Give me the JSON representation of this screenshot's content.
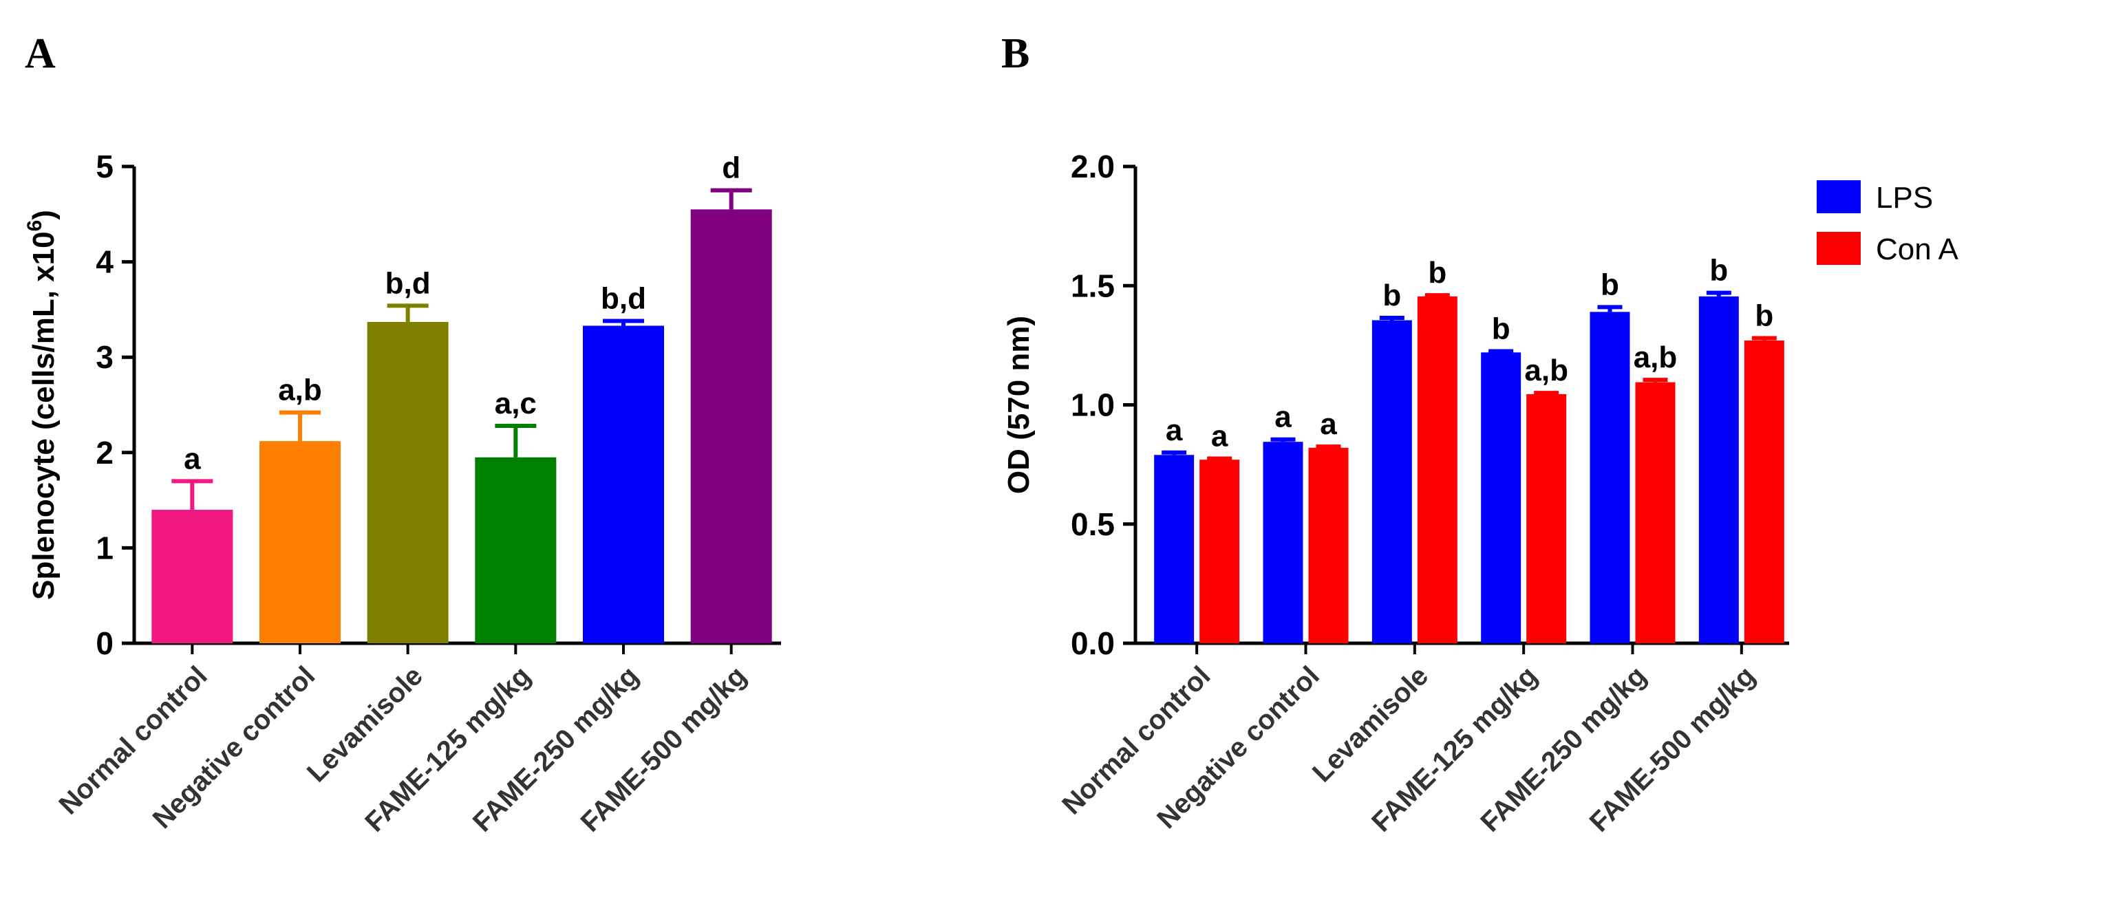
{
  "chart_data": [
    {
      "panel": "A",
      "type": "bar",
      "ylabel": "Splenocyte (cells/mL, x10",
      "ylabel_sup": "6",
      "ylabel_close": ")",
      "ylim": [
        0,
        5
      ],
      "yticks": [
        "0",
        "1",
        "2",
        "3",
        "4",
        "5"
      ],
      "categories": [
        "Normal control",
        "Negative control",
        "Levamisole",
        "FAME-125 mg/kg",
        "FAME-250 mg/kg",
        "FAME-500 mg/kg"
      ],
      "values": [
        1.4,
        2.12,
        3.37,
        1.95,
        3.33,
        4.55
      ],
      "errors": [
        0.3,
        0.3,
        0.17,
        0.33,
        0.05,
        0.2
      ],
      "colors": [
        "#f0197f",
        "#ff7f00",
        "#808000",
        "#008000",
        "#0000ff",
        "#7f0080"
      ],
      "labels": [
        "a",
        "a,b",
        "b,d",
        "a,c",
        "b,d",
        "d"
      ]
    },
    {
      "panel": "B",
      "type": "bar",
      "ylabel": "OD (570 nm)",
      "ylim": [
        0,
        2
      ],
      "yticks": [
        "0.0",
        "0.5",
        "1.0",
        "1.5",
        "2.0"
      ],
      "categories": [
        "Normal control",
        "Negative control",
        "Levamisole",
        "FAME-125 mg/kg",
        "FAME-250 mg/kg",
        "FAME-500 mg/kg"
      ],
      "legend_position": "top-right",
      "series": [
        {
          "name": "LPS",
          "color": "#0000ff",
          "values": [
            0.79,
            0.845,
            1.355,
            1.22,
            1.39,
            1.455
          ],
          "errors": [
            0.01,
            0.01,
            0.01,
            0.005,
            0.02,
            0.015
          ],
          "labels": [
            "a",
            "a",
            "b",
            "b",
            "b",
            "b"
          ]
        },
        {
          "name": "Con A",
          "color": "#ff0000",
          "values": [
            0.77,
            0.82,
            1.455,
            1.045,
            1.095,
            1.27
          ],
          "errors": [
            0.005,
            0.005,
            0.005,
            0.005,
            0.01,
            0.01
          ],
          "labels": [
            "a",
            "a",
            "b",
            "a,b",
            "a,b",
            "b"
          ]
        }
      ]
    }
  ]
}
